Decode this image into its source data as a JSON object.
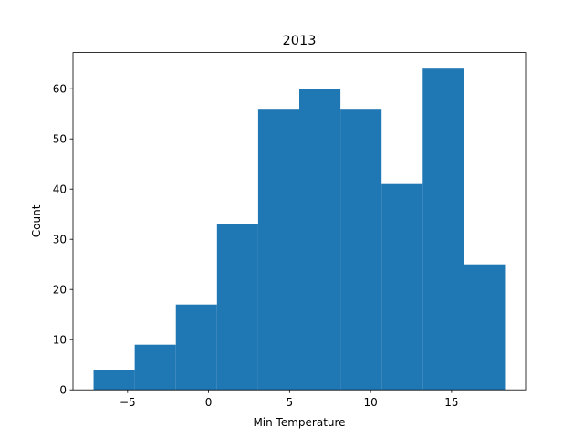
{
  "chart_data": {
    "type": "bar",
    "title": "2013",
    "xlabel": "Min Temperature",
    "ylabel": "Count",
    "bin_edges": [
      -7.1,
      -4.56,
      -2.02,
      0.52,
      3.06,
      5.6,
      8.14,
      10.68,
      13.22,
      15.76,
      18.3
    ],
    "values": [
      4,
      9,
      17,
      33,
      56,
      60,
      56,
      41,
      64,
      25
    ],
    "xlim": [
      -8.37,
      19.57
    ],
    "ylim": [
      0,
      67.2
    ],
    "xticks": [
      -5,
      0,
      5,
      10,
      15
    ],
    "xtick_labels": [
      "−5",
      "0",
      "5",
      "10",
      "15"
    ],
    "yticks": [
      0,
      10,
      20,
      30,
      40,
      50,
      60
    ],
    "ytick_labels": [
      "0",
      "10",
      "20",
      "30",
      "40",
      "50",
      "60"
    ],
    "bar_color": "#1f77b4",
    "grid": false,
    "legend": "none"
  }
}
